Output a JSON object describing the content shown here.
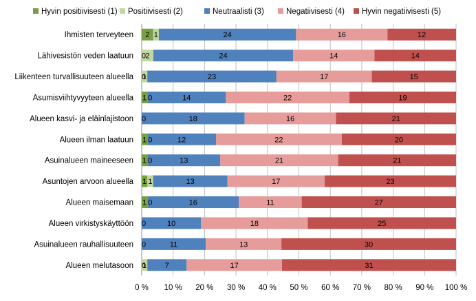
{
  "chart_data": {
    "type": "bar",
    "orientation": "horizontal",
    "stacked": "percent",
    "categories": [
      "Ihmisten terveyteen",
      "Lähivesistön veden laatuun",
      "Liikenteen turvallisuuteen alueella",
      "Asumisviihtyvyyteen alueella",
      "Alueen kasvi- ja eläinlajistoon",
      "Alueen ilman laatuun",
      "Asuinalueen maineeseen",
      "Asuntojen arvoon alueella",
      "Alueen maisemaan",
      "Alueen virkistyskäyttöön",
      "Asuinalueen rauhallisuuteen",
      "Alueen melutasoon"
    ],
    "series": [
      {
        "name": "Hyvin positiivisesti (1)",
        "color": "#77a043",
        "values": [
          2,
          0,
          0,
          1,
          0,
          1,
          1,
          1,
          1,
          0,
          0,
          0
        ],
        "labels": [
          "2",
          "0",
          "0",
          "1",
          "0",
          "1",
          "1",
          "1",
          "1",
          "0",
          "0",
          "0"
        ]
      },
      {
        "name": "Positiivisesti (2)",
        "color": "#c2d7a0",
        "values": [
          1,
          2,
          1,
          0,
          0,
          0,
          0,
          1,
          0,
          0,
          0,
          1
        ],
        "labels": [
          "1",
          "2",
          "1",
          "0",
          "",
          "0",
          "0",
          "1",
          "0",
          "",
          "",
          "1"
        ]
      },
      {
        "name": "Neutraalisti (3)",
        "color": "#4f81bd",
        "values": [
          24,
          24,
          23,
          14,
          18,
          12,
          13,
          13,
          16,
          10,
          11,
          7
        ],
        "labels": [
          "24",
          "24",
          "23",
          "14",
          "18",
          "12",
          "13",
          "13",
          "16",
          "10",
          "11",
          "7"
        ]
      },
      {
        "name": "Negatiivisesti (4)",
        "color": "#e69c9b",
        "values": [
          16,
          14,
          17,
          22,
          16,
          22,
          21,
          17,
          11,
          18,
          13,
          17
        ],
        "labels": [
          "16",
          "14",
          "17",
          "22",
          "16",
          "22",
          "21",
          "17",
          "11",
          "18",
          "13",
          "17"
        ]
      },
      {
        "name": "Hyvin negatiivisesti (5)",
        "color": "#c0504d",
        "values": [
          12,
          14,
          15,
          19,
          21,
          20,
          21,
          23,
          27,
          25,
          30,
          31
        ],
        "labels": [
          "12",
          "14",
          "15",
          "19",
          "21",
          "20",
          "21",
          "23",
          "27",
          "25",
          "30",
          "31"
        ]
      }
    ],
    "x_ticks": [
      "0 %",
      "10 %",
      "20 %",
      "30 %",
      "40 %",
      "50 %",
      "60 %",
      "70 %",
      "80 %",
      "90 %",
      "100 %"
    ],
    "xlim": [
      0,
      100
    ],
    "grid": true,
    "legend_position": "top"
  }
}
